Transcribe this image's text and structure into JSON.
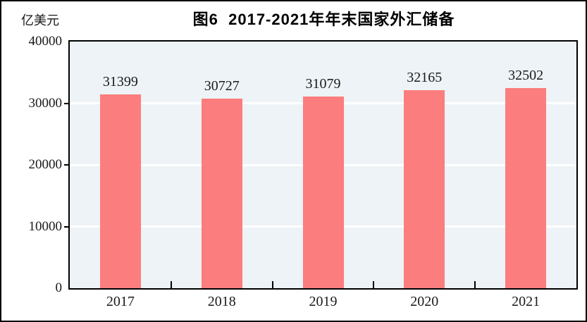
{
  "figure": {
    "title": "图6  2017-2021年年末国家外汇储备",
    "unit_label": "亿美元"
  },
  "chart_data": {
    "type": "bar",
    "title": "图6  2017-2021年年末国家外汇储备",
    "ylabel": "亿美元",
    "xlabel": "",
    "categories": [
      "2017",
      "2018",
      "2019",
      "2020",
      "2021"
    ],
    "values": [
      31399,
      30727,
      31079,
      32165,
      32502
    ],
    "data_labels_shown": true,
    "ylim": [
      0,
      40000
    ],
    "yticks": [
      0,
      10000,
      20000,
      30000,
      40000
    ],
    "grid": true,
    "legend_position": "none",
    "colors": {
      "bar": "#FC7D7D",
      "plot_background": "#EDF3F6",
      "gridline": "#FFFFFF",
      "axis": "#000000",
      "text": "#1A1A1A"
    }
  }
}
